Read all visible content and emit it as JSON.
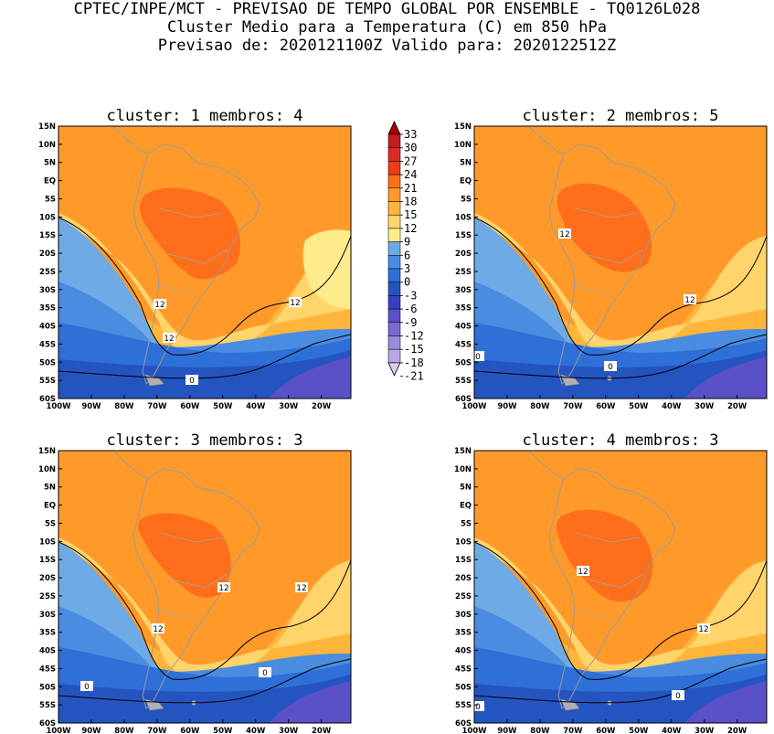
{
  "header": {
    "line1": "CPTEC/INPE/MCT - PREVISAO DE TEMPO GLOBAL POR ENSEMBLE - TQ0126L028",
    "line2": "Cluster Medio para a Temperatura (C) em 850 hPa",
    "line3": "Previsao de: 2020121100Z   Valido para: 2020122512Z"
  },
  "axes": {
    "lat_labels": [
      "15N",
      "10N",
      "5N",
      "EQ",
      "5S",
      "10S",
      "15S",
      "20S",
      "25S",
      "30S",
      "35S",
      "40S",
      "45S",
      "50S",
      "55S",
      "60S"
    ],
    "lon_labels": [
      "100W",
      "90W",
      "80W",
      "70W",
      "60W",
      "50W",
      "40W",
      "30W",
      "20W"
    ]
  },
  "colorbar": {
    "levels": [
      "33",
      "30",
      "27",
      "24",
      "21",
      "18",
      "15",
      "12",
      "9",
      "6",
      "3",
      "0",
      "-3",
      "-6",
      "-9",
      "-12",
      "-15",
      "-18",
      "-21"
    ],
    "colors": [
      "#a50000",
      "#c41c1c",
      "#dc2a2a",
      "#f03c14",
      "#ff6e1a",
      "#ff9a2a",
      "#ffb43a",
      "#ffd46a",
      "#ffeb8c",
      "#6eaae6",
      "#4a8ce0",
      "#2f6fd8",
      "#2454c0",
      "#3a3ec0",
      "#5a50c8",
      "#7a6ad2",
      "#9a8ada",
      "#b6a8e4",
      "#d8ccf0"
    ]
  },
  "panels": [
    {
      "title": "cluster: 1   membros: 4",
      "contour_labels": [
        "12",
        "12",
        "12",
        "0"
      ]
    },
    {
      "title": "cluster: 2   membros: 5",
      "contour_labels": [
        "12",
        "12",
        "0",
        "0"
      ]
    },
    {
      "title": "cluster: 3   membros: 3",
      "contour_labels": [
        "12",
        "12",
        "12",
        "0",
        "0"
      ]
    },
    {
      "title": "cluster: 4   membros: 3",
      "contour_labels": [
        "12",
        "12",
        "0",
        "0"
      ]
    }
  ]
}
